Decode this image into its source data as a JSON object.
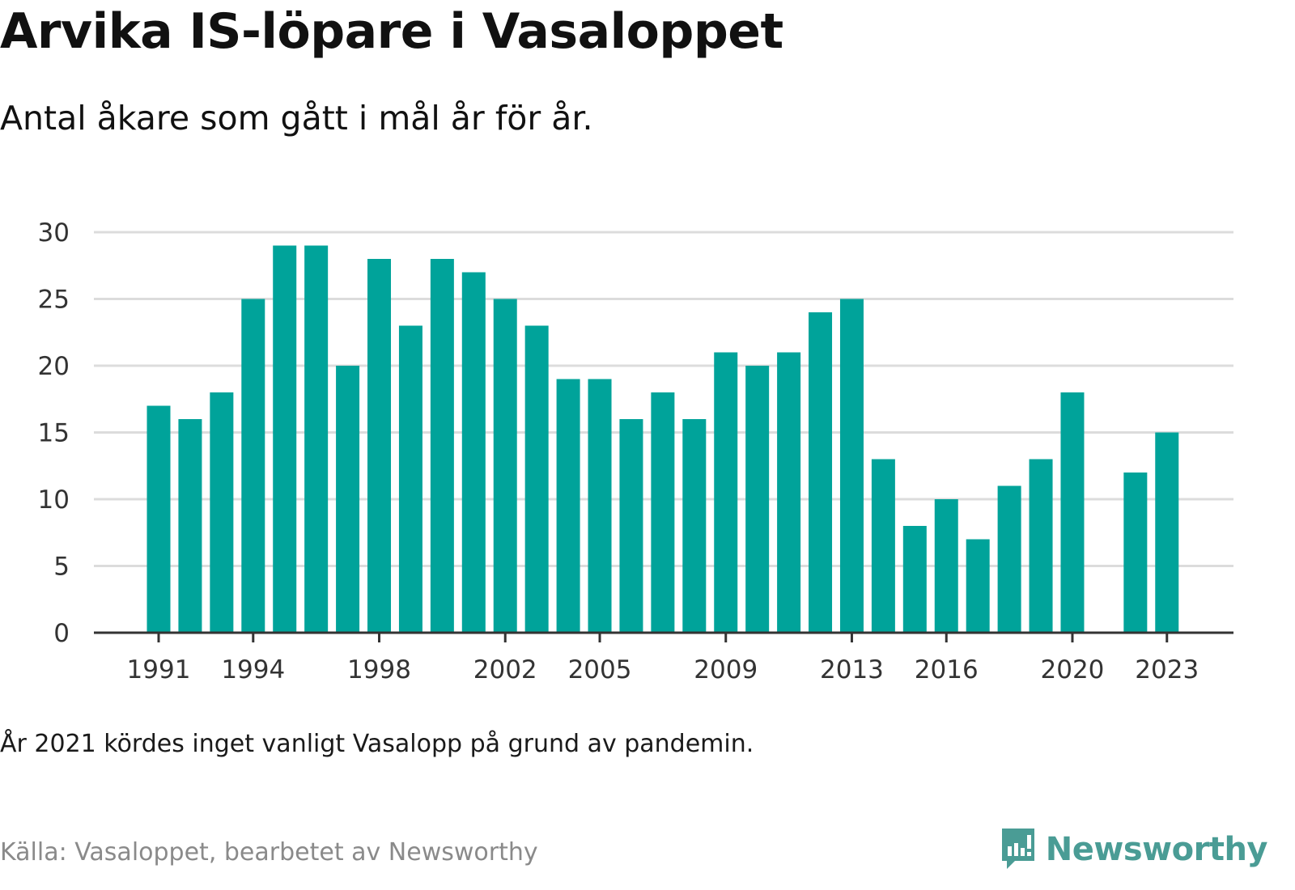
{
  "header": {
    "title": "Arvika IS-löpare i Vasaloppet",
    "subtitle": "Antal åkare som gått i mål år för år."
  },
  "footer": {
    "note": "År 2021 kördes inget vanligt Vasalopp på grund av pandemin.",
    "source": "Källa: Vasaloppet, bearbetet av Newsworthy",
    "brand": "Newsworthy"
  },
  "colors": {
    "bar": "#00a39a",
    "grid": "#dcdcdc",
    "axis": "#333333",
    "brand": "#4a9c95"
  },
  "chart_data": {
    "type": "bar",
    "title": "Arvika IS-löpare i Vasaloppet",
    "subtitle": "Antal åkare som gått i mål år för år.",
    "categories": [
      1991,
      1992,
      1993,
      1994,
      1995,
      1996,
      1997,
      1998,
      1999,
      2000,
      2001,
      2002,
      2003,
      2004,
      2005,
      2006,
      2007,
      2008,
      2009,
      2010,
      2011,
      2012,
      2013,
      2014,
      2015,
      2016,
      2017,
      2018,
      2019,
      2020,
      2021,
      2022,
      2023
    ],
    "values": [
      17,
      16,
      18,
      25,
      29,
      29,
      20,
      28,
      23,
      28,
      27,
      25,
      23,
      19,
      19,
      16,
      18,
      16,
      21,
      20,
      21,
      24,
      25,
      13,
      8,
      10,
      7,
      11,
      13,
      18,
      null,
      12,
      15
    ],
    "x_tick_labels": [
      "1991",
      "1994",
      "1998",
      "2002",
      "2005",
      "2009",
      "2013",
      "2016",
      "2020",
      "2023"
    ],
    "y_ticks": [
      0,
      5,
      10,
      15,
      20,
      25,
      30
    ],
    "ylim": [
      0,
      30
    ],
    "xlabel": "",
    "ylabel": "",
    "grid": true,
    "legend": "none"
  }
}
